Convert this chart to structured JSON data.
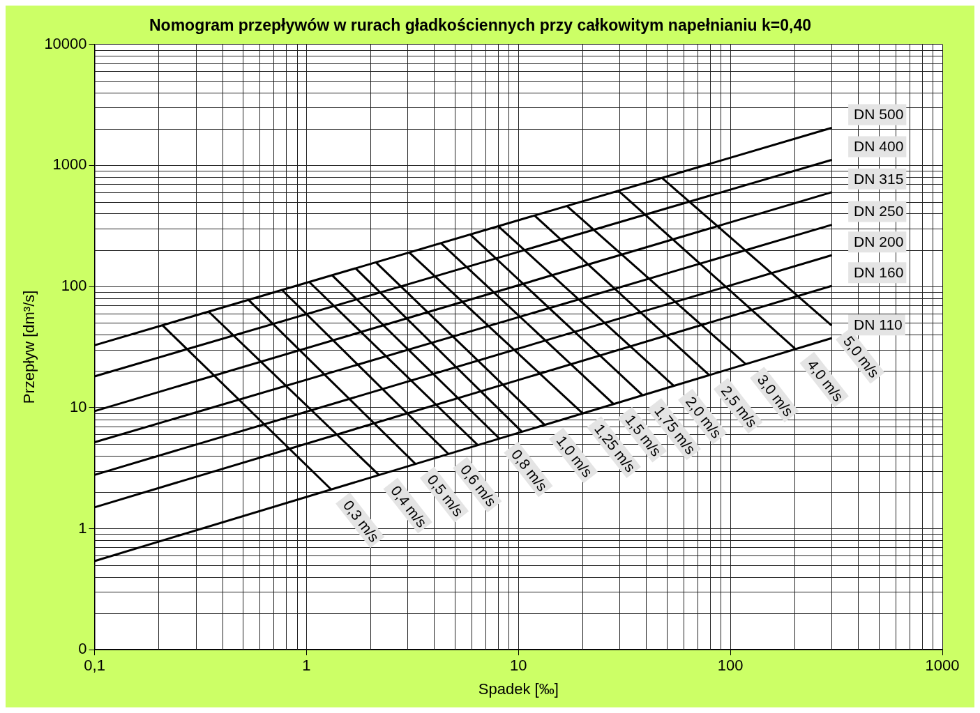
{
  "chart_data": {
    "type": "line",
    "title": "Nomogram przepływów w rurach gładkościennych przy całkowitym napełnianiu k=0,40",
    "xlabel": "Spadek [‰]",
    "ylabel": "Przepływ [dm³/s]",
    "log": "xy",
    "grid": true,
    "legend": false,
    "marker": "none",
    "line_style": "solid",
    "xlim": [
      0.1,
      1000
    ],
    "xticks": [
      {
        "value": 0.1,
        "label": "0,1"
      },
      1,
      10,
      100,
      1000
    ],
    "ylim": [
      0.1,
      10000
    ],
    "yticks": [
      {
        "value": 0.1,
        "label": "0"
      },
      1,
      10,
      100,
      1000,
      10000
    ],
    "series": [
      {
        "name": "DN 500",
        "color": "#000000",
        "x": [
          0.1,
          300
        ],
        "values": [
          32.7,
          2040
        ]
      },
      {
        "name": "DN 400",
        "color": "#000000",
        "x": [
          0.1,
          300
        ],
        "values": [
          18.1,
          1110
        ]
      },
      {
        "name": "DN 315",
        "color": "#000000",
        "x": [
          0.1,
          300
        ],
        "values": [
          9.35,
          600
        ]
      },
      {
        "name": "DN 250",
        "color": "#000000",
        "x": [
          0.1,
          300
        ],
        "values": [
          5.17,
          323
        ]
      },
      {
        "name": "DN 200",
        "color": "#000000",
        "x": [
          0.1,
          300
        ],
        "values": [
          2.78,
          181
        ]
      },
      {
        "name": "DN 160",
        "color": "#000000",
        "x": [
          0.1,
          300
        ],
        "values": [
          1.5,
          101
        ]
      },
      {
        "name": "DN 110",
        "color": "#000000",
        "x": [
          0.1,
          300
        ],
        "values": [
          0.54,
          37.4
        ]
      },
      {
        "name": "0,3 m/s",
        "color": "#000000",
        "x": [
          0.209,
          1.31
        ],
        "values": [
          47.9,
          2.1
        ]
      },
      {
        "name": "0,4 m/s",
        "color": "#000000",
        "x": [
          0.345,
          2.2
        ],
        "values": [
          62.1,
          2.77
        ]
      },
      {
        "name": "0,5 m/s",
        "color": "#000000",
        "x": [
          0.532,
          3.27
        ],
        "values": [
          77.6,
          3.42
        ]
      },
      {
        "name": "0,6 m/s",
        "color": "#000000",
        "x": [
          0.766,
          4.68
        ],
        "values": [
          93.6,
          4.13
        ]
      },
      {
        "color": "#000000",
        "x": [
          1.03,
          6.44
        ],
        "values": [
          109,
          4.89
        ]
      },
      {
        "name": "0,8 m/s",
        "color": "#000000",
        "x": [
          1.32,
          8.15
        ],
        "values": [
          124,
          5.53
        ]
      },
      {
        "color": "#000000",
        "x": [
          1.7,
          10.4
        ],
        "values": [
          142,
          6.3
        ]
      },
      {
        "name": "1,0 m/s",
        "color": "#000000",
        "x": [
          2.12,
          13.3
        ],
        "values": [
          159,
          7.19
        ]
      },
      {
        "name": "1,25 m/s",
        "color": "#000000",
        "x": [
          3.05,
          20.1
        ],
        "values": [
          191,
          8.95
        ]
      },
      {
        "name": "1,5 m/s",
        "color": "#000000",
        "x": [
          4.3,
          28.1
        ],
        "values": [
          229,
          10.7
        ]
      },
      {
        "name": "1,75 m/s",
        "color": "#000000",
        "x": [
          5.92,
          38.6
        ],
        "values": [
          269,
          12.6
        ]
      },
      {
        "name": "2,0 m/s",
        "color": "#000000",
        "x": [
          8.02,
          54.1
        ],
        "values": [
          315,
          15.1
        ]
      },
      {
        "name": "2,5 m/s",
        "color": "#000000",
        "x": [
          11.9,
          79.6
        ],
        "values": [
          386,
          18.5
        ]
      },
      {
        "name": "3,0 m/s",
        "color": "#000000",
        "x": [
          16.9,
          118
        ],
        "values": [
          463,
          22.9
        ]
      },
      {
        "name": "4,0 m/s",
        "color": "#000000",
        "x": [
          29.6,
          203
        ],
        "values": [
          618,
          30.4
        ]
      },
      {
        "name": "5,0 m/s",
        "color": "#000000",
        "x": [
          47.5,
          300
        ],
        "values": [
          789,
          47.7
        ]
      }
    ]
  }
}
